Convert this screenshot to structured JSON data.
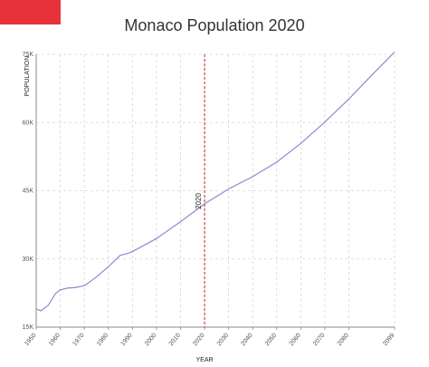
{
  "accent": {
    "flag_color": "#e8323a",
    "line_color": "#8a8ad0",
    "marker_color": "#d02020",
    "grid_color": "#d6d6d6"
  },
  "chart_data": {
    "type": "line",
    "title": "Monaco Population 2020",
    "xlabel": "YEAR",
    "ylabel": "POPULATION",
    "xlim": [
      1950,
      2099
    ],
    "ylim": [
      15000,
      75000
    ],
    "grid": true,
    "x_ticks": [
      "1950",
      "1960",
      "1970",
      "1980",
      "1990",
      "2000",
      "2010",
      "2020",
      "2030",
      "2040",
      "2050",
      "2060",
      "2070",
      "2080",
      "2099"
    ],
    "y_ticks": [
      "15K",
      "30K",
      "45K",
      "60K",
      "75K"
    ],
    "marker": {
      "x": 2020,
      "label": "2020"
    },
    "series": [
      {
        "x": [
          1950,
          1952,
          1955,
          1958,
          1960,
          1963,
          1966,
          1970,
          1975,
          1980,
          1985,
          1988,
          1990,
          2000,
          2010,
          2020,
          2030,
          2040,
          2050,
          2060,
          2070,
          2080,
          2090,
          2099
        ],
        "values": [
          19000,
          18600,
          19800,
          22400,
          23200,
          23600,
          23700,
          24100,
          26000,
          28300,
          30800,
          31200,
          31600,
          34500,
          38200,
          42100,
          45400,
          48100,
          51300,
          55400,
          60100,
          65200,
          70700,
          75500
        ]
      }
    ]
  }
}
